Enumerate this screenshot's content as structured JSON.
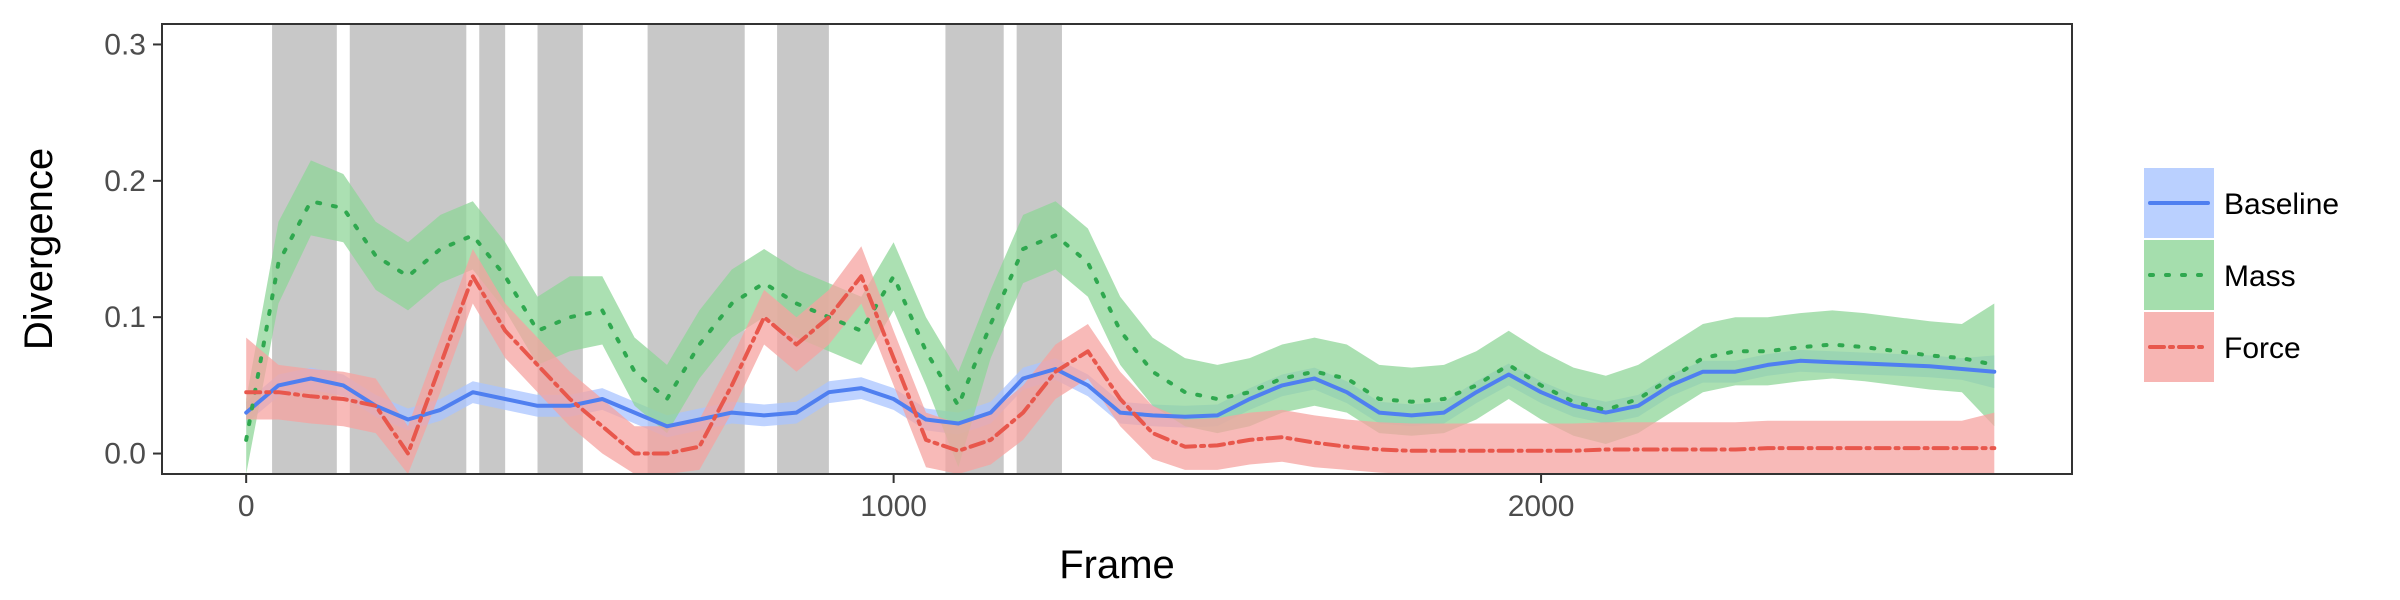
{
  "chart_data": {
    "type": "line",
    "title": "",
    "xlabel": "Frame",
    "ylabel": "Divergence",
    "xlim": [
      -130,
      2820
    ],
    "ylim": [
      -0.015,
      0.315
    ],
    "x_ticks": [
      0,
      1000,
      2000
    ],
    "x_tick_labels": [
      "0",
      "1000",
      "2000"
    ],
    "y_ticks": [
      0.0,
      0.1,
      0.2,
      0.3
    ],
    "y_tick_labels": [
      "0.0",
      "0.1",
      "0.2",
      "0.3"
    ],
    "grid": false,
    "legend_position": "right",
    "shaded_frame_intervals": [
      [
        40,
        140
      ],
      [
        160,
        340
      ],
      [
        360,
        400
      ],
      [
        450,
        520
      ],
      [
        620,
        770
      ],
      [
        820,
        900
      ],
      [
        1080,
        1170
      ],
      [
        1190,
        1260
      ]
    ],
    "shade_color": "#c8c8c8",
    "x": [
      0,
      50,
      100,
      150,
      200,
      250,
      300,
      350,
      400,
      450,
      500,
      550,
      600,
      650,
      700,
      750,
      800,
      850,
      900,
      950,
      1000,
      1050,
      1100,
      1150,
      1200,
      1250,
      1300,
      1350,
      1400,
      1450,
      1500,
      1550,
      1600,
      1650,
      1700,
      1750,
      1800,
      1850,
      1900,
      1950,
      2000,
      2050,
      2100,
      2150,
      2200,
      2250,
      2300,
      2350,
      2400,
      2450,
      2500,
      2550,
      2600,
      2650,
      2700
    ],
    "series": [
      {
        "name": "Baseline",
        "color": "#4f7ff0",
        "band_color": "#a9c4ff",
        "dash": "",
        "values": [
          0.03,
          0.05,
          0.055,
          0.05,
          0.035,
          0.025,
          0.032,
          0.045,
          0.04,
          0.035,
          0.035,
          0.04,
          0.03,
          0.02,
          0.025,
          0.03,
          0.028,
          0.03,
          0.045,
          0.048,
          0.04,
          0.025,
          0.022,
          0.03,
          0.055,
          0.062,
          0.05,
          0.03,
          0.028,
          0.027,
          0.028,
          0.04,
          0.05,
          0.055,
          0.045,
          0.03,
          0.028,
          0.03,
          0.045,
          0.058,
          0.045,
          0.035,
          0.03,
          0.035,
          0.05,
          0.06,
          0.06,
          0.065,
          0.068,
          0.067,
          0.066,
          0.065,
          0.064,
          0.062,
          0.06
        ],
        "lower": [
          0.022,
          0.042,
          0.047,
          0.042,
          0.027,
          0.017,
          0.024,
          0.037,
          0.032,
          0.027,
          0.027,
          0.032,
          0.022,
          0.012,
          0.017,
          0.022,
          0.02,
          0.022,
          0.037,
          0.04,
          0.032,
          0.017,
          0.014,
          0.022,
          0.047,
          0.054,
          0.042,
          0.022,
          0.02,
          0.019,
          0.02,
          0.032,
          0.042,
          0.047,
          0.037,
          0.022,
          0.02,
          0.022,
          0.037,
          0.05,
          0.037,
          0.027,
          0.022,
          0.027,
          0.042,
          0.052,
          0.052,
          0.057,
          0.06,
          0.059,
          0.058,
          0.057,
          0.056,
          0.054,
          0.048
        ],
        "upper": [
          0.038,
          0.058,
          0.063,
          0.058,
          0.043,
          0.033,
          0.04,
          0.053,
          0.048,
          0.043,
          0.043,
          0.048,
          0.038,
          0.028,
          0.033,
          0.038,
          0.036,
          0.038,
          0.053,
          0.056,
          0.048,
          0.033,
          0.03,
          0.038,
          0.063,
          0.07,
          0.058,
          0.038,
          0.036,
          0.035,
          0.036,
          0.048,
          0.058,
          0.063,
          0.053,
          0.038,
          0.036,
          0.038,
          0.053,
          0.066,
          0.053,
          0.043,
          0.038,
          0.043,
          0.058,
          0.068,
          0.068,
          0.073,
          0.076,
          0.075,
          0.074,
          0.073,
          0.072,
          0.07,
          0.072
        ]
      },
      {
        "name": "Mass",
        "color": "#2fa84f",
        "band_color": "#8fd698",
        "dash": "3,13",
        "values": [
          0.01,
          0.14,
          0.185,
          0.18,
          0.145,
          0.13,
          0.15,
          0.16,
          0.13,
          0.09,
          0.1,
          0.105,
          0.06,
          0.04,
          0.08,
          0.11,
          0.125,
          0.11,
          0.1,
          0.09,
          0.13,
          0.075,
          0.035,
          0.095,
          0.15,
          0.16,
          0.14,
          0.09,
          0.06,
          0.045,
          0.04,
          0.045,
          0.055,
          0.06,
          0.055,
          0.04,
          0.038,
          0.04,
          0.05,
          0.065,
          0.05,
          0.038,
          0.032,
          0.04,
          0.055,
          0.07,
          0.075,
          0.075,
          0.078,
          0.08,
          0.078,
          0.075,
          0.072,
          0.07,
          0.065
        ],
        "lower": [
          -0.015,
          0.11,
          0.16,
          0.155,
          0.12,
          0.105,
          0.125,
          0.135,
          0.105,
          0.065,
          0.075,
          0.08,
          0.035,
          0.015,
          0.055,
          0.085,
          0.1,
          0.085,
          0.075,
          0.065,
          0.105,
          0.05,
          -0.01,
          0.07,
          0.125,
          0.135,
          0.115,
          0.065,
          0.035,
          0.02,
          0.015,
          0.02,
          0.03,
          0.035,
          0.03,
          0.015,
          0.013,
          0.015,
          0.025,
          0.04,
          0.025,
          0.013,
          0.007,
          0.015,
          0.03,
          0.045,
          0.05,
          0.05,
          0.053,
          0.055,
          0.053,
          0.05,
          0.047,
          0.045,
          0.02
        ],
        "upper": [
          0.04,
          0.17,
          0.215,
          0.205,
          0.17,
          0.155,
          0.175,
          0.185,
          0.155,
          0.115,
          0.13,
          0.13,
          0.085,
          0.065,
          0.105,
          0.135,
          0.15,
          0.135,
          0.125,
          0.115,
          0.155,
          0.1,
          0.06,
          0.12,
          0.175,
          0.185,
          0.165,
          0.115,
          0.085,
          0.07,
          0.065,
          0.07,
          0.08,
          0.085,
          0.08,
          0.065,
          0.063,
          0.065,
          0.075,
          0.09,
          0.075,
          0.063,
          0.057,
          0.065,
          0.08,
          0.095,
          0.1,
          0.1,
          0.103,
          0.105,
          0.103,
          0.1,
          0.097,
          0.095,
          0.11
        ]
      },
      {
        "name": "Force",
        "color": "#e8574c",
        "band_color": "#f5a3a0",
        "dash": "14,6,3,6",
        "values": [
          0.045,
          0.045,
          0.042,
          0.04,
          0.035,
          0.0,
          0.065,
          0.13,
          0.09,
          0.065,
          0.04,
          0.02,
          0.0,
          0.0,
          0.005,
          0.05,
          0.1,
          0.08,
          0.1,
          0.13,
          0.07,
          0.01,
          0.002,
          0.01,
          0.03,
          0.06,
          0.075,
          0.04,
          0.015,
          0.005,
          0.006,
          0.01,
          0.012,
          0.008,
          0.005,
          0.003,
          0.002,
          0.002,
          0.002,
          0.002,
          0.002,
          0.002,
          0.003,
          0.003,
          0.003,
          0.003,
          0.003,
          0.004,
          0.004,
          0.004,
          0.004,
          0.004,
          0.004,
          0.004,
          0.004
        ],
        "lower": [
          0.025,
          0.025,
          0.022,
          0.02,
          0.015,
          -0.015,
          0.045,
          0.11,
          0.07,
          0.045,
          0.02,
          0.0,
          -0.015,
          -0.015,
          -0.012,
          0.03,
          0.08,
          0.06,
          0.08,
          0.11,
          0.05,
          -0.01,
          -0.015,
          -0.008,
          0.01,
          0.04,
          0.055,
          0.02,
          -0.004,
          -0.012,
          -0.012,
          -0.008,
          -0.006,
          -0.01,
          -0.012,
          -0.014,
          -0.015,
          -0.015,
          -0.015,
          -0.015,
          -0.015,
          -0.015,
          -0.015,
          -0.015,
          -0.015,
          -0.015,
          -0.015,
          -0.015,
          -0.015,
          -0.015,
          -0.015,
          -0.015,
          -0.015,
          -0.015,
          -0.015
        ],
        "upper": [
          0.085,
          0.065,
          0.062,
          0.06,
          0.055,
          0.02,
          0.085,
          0.15,
          0.11,
          0.085,
          0.06,
          0.04,
          0.02,
          0.02,
          0.025,
          0.07,
          0.12,
          0.1,
          0.12,
          0.152,
          0.09,
          0.03,
          0.022,
          0.03,
          0.05,
          0.08,
          0.095,
          0.06,
          0.035,
          0.025,
          0.026,
          0.03,
          0.032,
          0.028,
          0.025,
          0.023,
          0.022,
          0.022,
          0.022,
          0.022,
          0.022,
          0.022,
          0.023,
          0.023,
          0.023,
          0.023,
          0.023,
          0.024,
          0.024,
          0.024,
          0.024,
          0.024,
          0.024,
          0.024,
          0.03
        ]
      }
    ]
  }
}
